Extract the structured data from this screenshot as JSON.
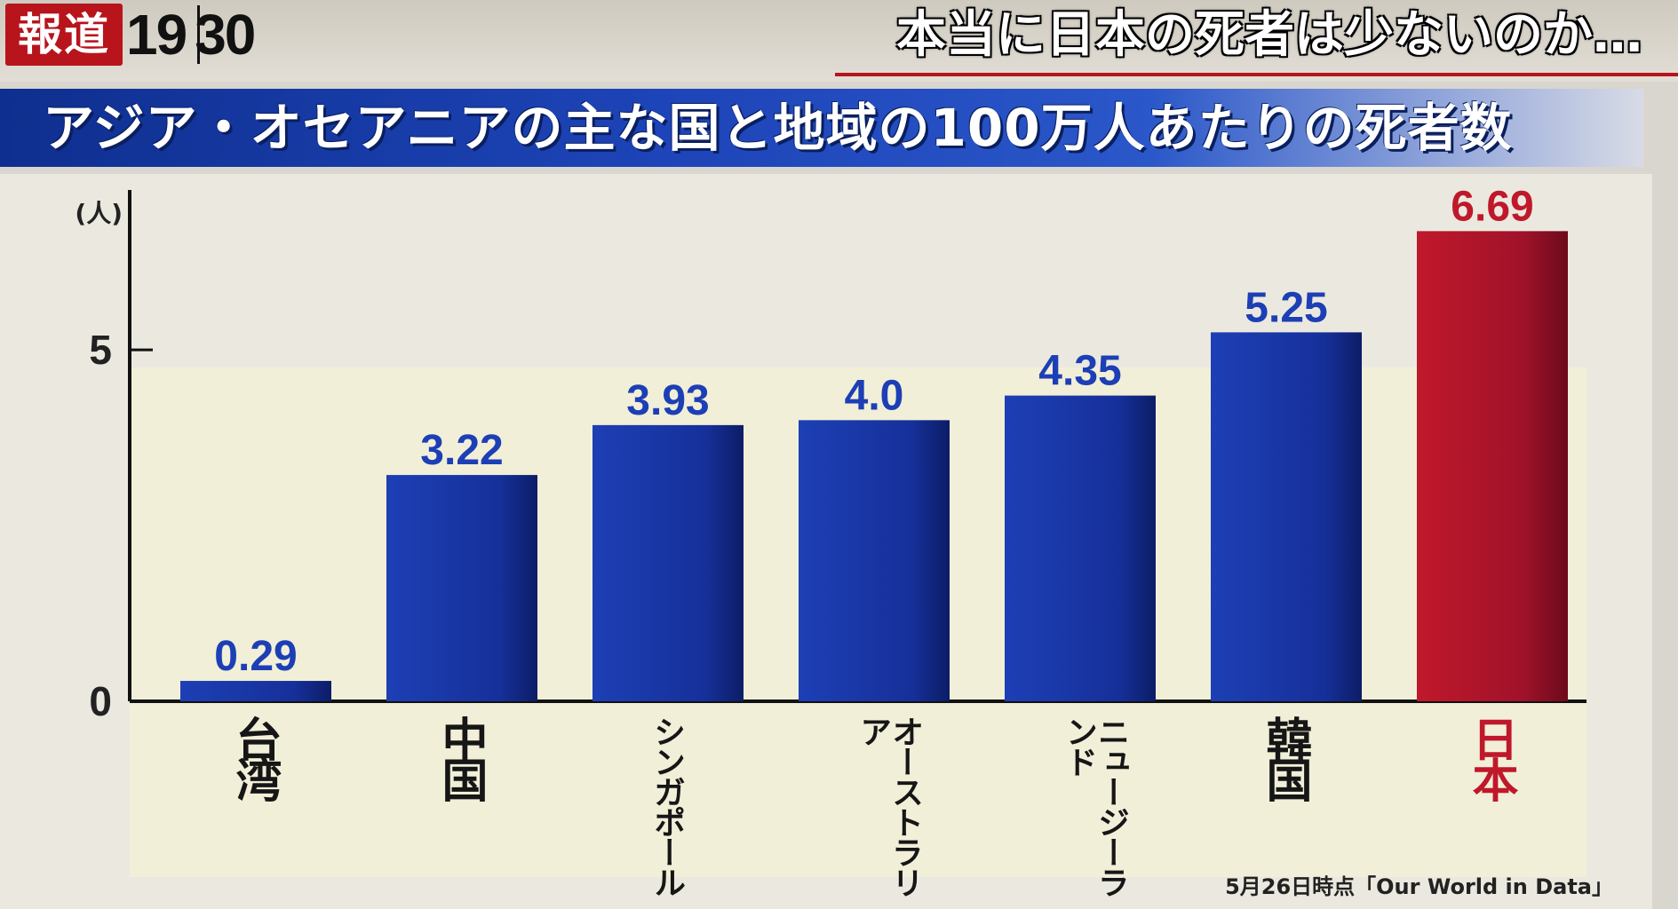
{
  "broadcast": {
    "program_logo_kanji": "報道",
    "program_logo_time_hour": "19",
    "program_logo_time_min": "30",
    "headline": "本当に日本の死者は少ないのか…"
  },
  "banner": {
    "title": "アジア・オセアニアの主な国と地域の100万人あたりの死者数"
  },
  "chart_data": {
    "type": "bar",
    "title": "アジア・オセアニアの主な国と地域の100万人あたりの死者数",
    "ylabel": "(人)",
    "xlabel": "",
    "ylim": [
      0,
      7.2
    ],
    "yticks": [
      0,
      5
    ],
    "ytick_labels": [
      "0",
      "5"
    ],
    "grid": false,
    "categories": [
      "台湾",
      "中国",
      "シンガポール",
      "オーストラリア",
      "ニュージーランド",
      "韓国",
      "日本"
    ],
    "values": [
      0.29,
      3.22,
      3.93,
      4.0,
      4.35,
      5.25,
      6.69
    ],
    "value_labels": [
      "0.29",
      "3.22",
      "3.93",
      "4.0",
      "4.35",
      "5.25",
      "6.69"
    ],
    "colors": {
      "default_bar": "#1d3fb5",
      "highlight_bar": "#c0182b",
      "default_label": "#1d3fb5",
      "highlight_label": "#c0182b",
      "highlight_category_text": "#c0182b"
    },
    "highlight_index": 6
  },
  "footer": {
    "source": "5月26日時点「Our World in Data」"
  }
}
